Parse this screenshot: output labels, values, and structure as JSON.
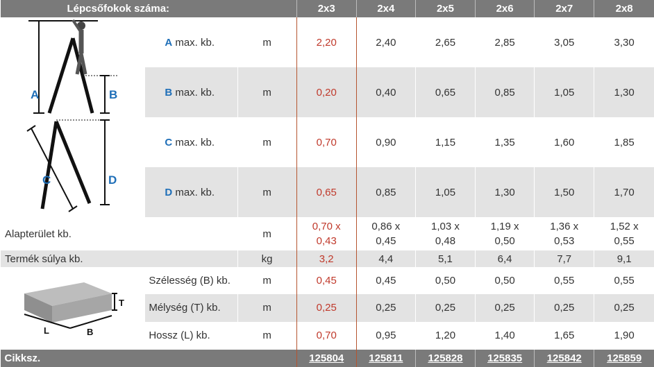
{
  "header": {
    "label": "Lépcsőfokok száma:",
    "columns": [
      "2x3",
      "2x4",
      "2x5",
      "2x6",
      "2x7",
      "2x8"
    ]
  },
  "ladder_rows": [
    {
      "letter": "A",
      "suffix": "max. kb.",
      "unit": "m",
      "values": [
        "2,20",
        "2,40",
        "2,65",
        "2,85",
        "3,05",
        "3,30"
      ]
    },
    {
      "letter": "B",
      "suffix": "max. kb.",
      "unit": "m",
      "values": [
        "0,20",
        "0,40",
        "0,65",
        "0,85",
        "1,05",
        "1,30"
      ]
    },
    {
      "letter": "C",
      "suffix": "max. kb.",
      "unit": "m",
      "values": [
        "0,70",
        "0,90",
        "1,15",
        "1,35",
        "1,60",
        "1,85"
      ]
    },
    {
      "letter": "D",
      "suffix": "max. kb.",
      "unit": "m",
      "values": [
        "0,65",
        "0,85",
        "1,05",
        "1,30",
        "1,50",
        "1,70"
      ]
    }
  ],
  "footprint": {
    "label": "Alapterület kb.",
    "unit": "m",
    "values": [
      [
        "0,70 x",
        "0,43"
      ],
      [
        "0,86 x",
        "0,45"
      ],
      [
        "1,03 x",
        "0,48"
      ],
      [
        "1,19 x",
        "0,50"
      ],
      [
        "1,36 x",
        "0,53"
      ],
      [
        "1,52 x",
        "0,55"
      ]
    ]
  },
  "weight": {
    "label": "Termék súlya kb.",
    "unit": "kg",
    "values": [
      "3,2",
      "4,4",
      "5,1",
      "6,4",
      "7,7",
      "9,1"
    ]
  },
  "package_rows": [
    {
      "label": "Szélesség (B) kb.",
      "unit": "m",
      "values": [
        "0,45",
        "0,45",
        "0,50",
        "0,50",
        "0,55",
        "0,55"
      ]
    },
    {
      "label": "Mélység (T) kb.",
      "unit": "m",
      "values": [
        "0,25",
        "0,25",
        "0,25",
        "0,25",
        "0,25",
        "0,25"
      ]
    },
    {
      "label": "Hossz (L) kb.",
      "unit": "m",
      "values": [
        "0,70",
        "0,95",
        "1,20",
        "1,40",
        "1,65",
        "1,90"
      ]
    }
  ],
  "article": {
    "label": "Cikksz.",
    "codes": [
      "125804",
      "125811",
      "125828",
      "125835",
      "125842",
      "125859"
    ]
  },
  "diagram_labels": {
    "a": "A",
    "b": "B",
    "c": "C",
    "d": "D",
    "t": "T",
    "l": "L",
    "pb": "B"
  },
  "colors": {
    "letter_blue": "#1f6fb8",
    "highlight": "#c0392b",
    "header_grey": "#7a7a7a",
    "code_bg": "#b5411f"
  }
}
